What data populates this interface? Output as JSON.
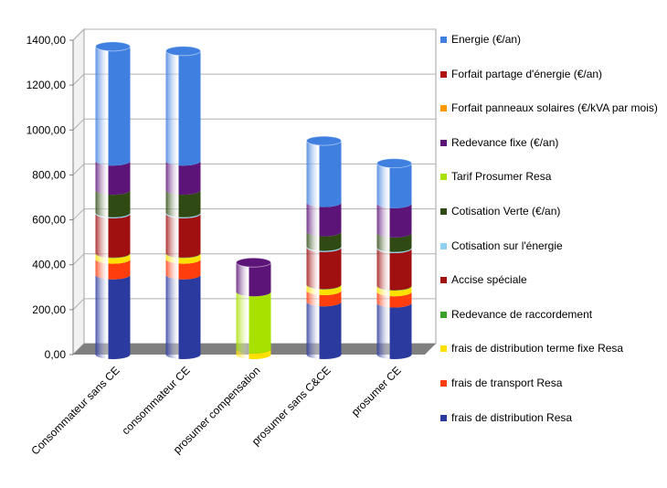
{
  "chart_data": {
    "type": "bar",
    "stacked": true,
    "style": "3d-cylinder",
    "ylim": [
      0,
      1400
    ],
    "yticks": [
      "0,00",
      "200,00",
      "400,00",
      "600,00",
      "800,00",
      "1000,00",
      "1200,00",
      "1400,00"
    ],
    "grid": true,
    "legend_position": "right",
    "categories": [
      "Consommateur sans CE",
      "consommateur CE",
      "prosumer compensation",
      "prosumer sans C&CE",
      "prosumer CE"
    ],
    "series": [
      {
        "name": "frais de distribution Resa",
        "color": "#2B3A9E",
        "values": [
          355,
          355,
          0,
          235,
          230
        ]
      },
      {
        "name": "frais de transport Resa",
        "color": "#FF3D0D",
        "values": [
          70,
          70,
          0,
          50,
          50
        ]
      },
      {
        "name": "frais de distribution terme fixe Resa",
        "color": "#FFE000",
        "values": [
          25,
          25,
          25,
          25,
          25
        ]
      },
      {
        "name": "Redevance  de raccordement",
        "color": "#3AA12A",
        "values": [
          2,
          2,
          0,
          2,
          2
        ]
      },
      {
        "name": "Accise spéciale",
        "color": "#A01010",
        "values": [
          175,
          175,
          0,
          165,
          165
        ]
      },
      {
        "name": "Cotisation sur l'énergie",
        "color": "#8FD0F0",
        "values": [
          5,
          5,
          0,
          5,
          5
        ]
      },
      {
        "name": "Cotisation Verte (€/an)",
        "color": "#2F4A12",
        "values": [
          100,
          100,
          0,
          65,
          65
        ]
      },
      {
        "name": "Tarif Prosumer Resa",
        "color": "#A8E000",
        "values": [
          0,
          0,
          255,
          0,
          0
        ]
      },
      {
        "name": "Redevance  fixe (€/an)",
        "color": "#5C1478",
        "values": [
          130,
          130,
          130,
          130,
          130
        ]
      },
      {
        "name": "Forfait panneaux  solaires (€/kVA par mois)",
        "color": "#FF9900",
        "values": [
          0,
          0,
          0,
          0,
          0
        ]
      },
      {
        "name": "Forfait partage d'énergie  (€/an)",
        "color": "#B01010",
        "values": [
          0,
          0,
          0,
          0,
          0
        ]
      },
      {
        "name": "Energie  (€/an)",
        "color": "#3F7FE0",
        "values": [
          510,
          490,
          0,
          275,
          180
        ]
      }
    ],
    "legend_order": [
      11,
      10,
      9,
      8,
      7,
      6,
      5,
      4,
      3,
      2,
      1,
      0
    ]
  }
}
